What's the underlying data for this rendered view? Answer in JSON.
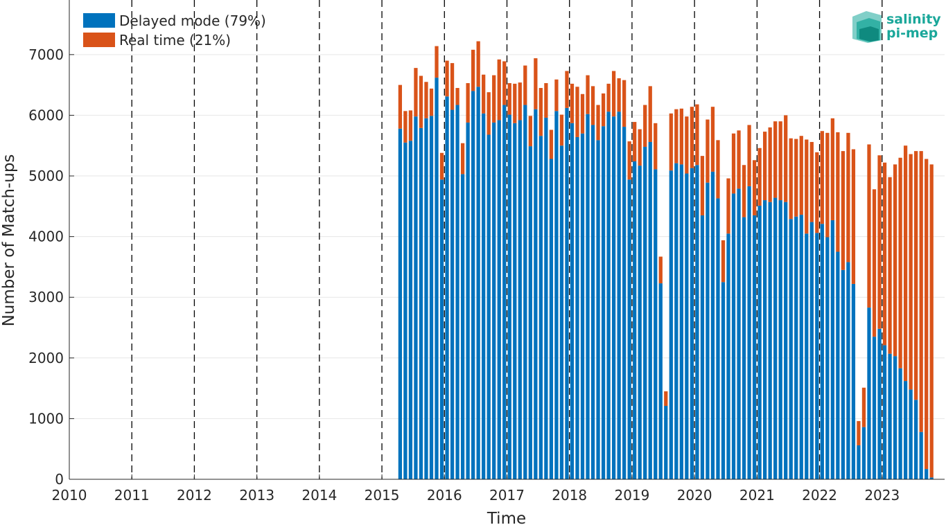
{
  "chart_data": {
    "type": "bar",
    "stacked": true,
    "xlabel": "Time",
    "ylabel": "Number of Match-ups",
    "ylim": [
      0,
      7900
    ],
    "xlim": [
      "2010-01",
      "2023-12"
    ],
    "grid": "horizontal",
    "legend_position": "top-left",
    "year_dividers": "dashed vertical line at each year start",
    "x_tick_labels": [
      "2010",
      "2011",
      "2012",
      "2013",
      "2014",
      "2015",
      "2016",
      "2017",
      "2018",
      "2019",
      "2020",
      "2021",
      "2022",
      "2023"
    ],
    "y_tick_labels": [
      "0",
      "1000",
      "2000",
      "3000",
      "4000",
      "5000",
      "6000",
      "7000"
    ],
    "colors": {
      "delayed": "#0072bd",
      "realtime": "#d95319",
      "axis": "#262626",
      "grid": "#e6e6e6"
    },
    "series": [
      {
        "name": "Delayed mode (79%)",
        "values": [
          5780,
          5550,
          5580,
          5980,
          5790,
          5950,
          5990,
          6620,
          4940,
          6310,
          6090,
          6170,
          5030,
          5880,
          6400,
          6470,
          6030,
          5680,
          5880,
          5920,
          6170,
          6010,
          5870,
          5920,
          6170,
          5490,
          6100,
          5660,
          5960,
          5280,
          6070,
          5500,
          6120,
          5870,
          5640,
          5700,
          6020,
          5840,
          5590,
          5820,
          6060,
          5980,
          6060,
          5810,
          4940,
          5240,
          5170,
          5480,
          5560,
          5110,
          3230,
          1210,
          5090,
          5210,
          5190,
          5040,
          5130,
          5180,
          4350,
          4890,
          5070,
          4630,
          3250,
          4050,
          4710,
          4790,
          4320,
          4830,
          4350,
          4510,
          4600,
          4570,
          4640,
          4600,
          4570,
          4290,
          4330,
          4360,
          4050,
          4240,
          4060,
          4210,
          3990,
          4270,
          3750,
          3450,
          3580,
          3220,
          560,
          860,
          2830,
          2350,
          2480,
          2210,
          2070,
          2030,
          1830,
          1620,
          1480,
          1310,
          780,
          170,
          30
        ],
        "color": "#0072bd"
      },
      {
        "name": "Real time (21%)",
        "values": [
          720,
          520,
          500,
          800,
          860,
          600,
          450,
          520,
          440,
          590,
          770,
          280,
          510,
          650,
          680,
          750,
          640,
          700,
          780,
          1000,
          720,
          520,
          650,
          620,
          650,
          500,
          840,
          790,
          570,
          480,
          520,
          510,
          610,
          650,
          830,
          650,
          640,
          640,
          580,
          540,
          460,
          750,
          550,
          770,
          630,
          650,
          600,
          690,
          920,
          760,
          440,
          240,
          940,
          890,
          920,
          940,
          1010,
          1000,
          980,
          1040,
          1070,
          960,
          690,
          910,
          990,
          960,
          860,
          1010,
          910,
          950,
          1130,
          1230,
          1260,
          1300,
          1430,
          1330,
          1280,
          1300,
          1550,
          1320,
          1330,
          1530,
          1720,
          1680,
          1970,
          1960,
          2130,
          2220,
          400,
          650,
          2690,
          2430,
          2860,
          3010,
          2910,
          3160,
          3470,
          3880,
          3880,
          4100,
          4630,
          5110,
          5160
        ],
        "color": "#d95319"
      }
    ],
    "x_months": [
      "2015-04",
      "2015-05",
      "2015-06",
      "2015-07",
      "2015-08",
      "2015-09",
      "2015-10",
      "2015-11",
      "2015-12",
      "2016-01",
      "2016-02",
      "2016-03",
      "2016-04",
      "2016-05",
      "2016-06",
      "2016-07",
      "2016-08",
      "2016-09",
      "2016-10",
      "2016-11",
      "2016-12",
      "2017-01",
      "2017-02",
      "2017-03",
      "2017-04",
      "2017-05",
      "2017-06",
      "2017-07",
      "2017-08",
      "2017-09",
      "2017-10",
      "2017-11",
      "2017-12",
      "2018-01",
      "2018-02",
      "2018-03",
      "2018-04",
      "2018-05",
      "2018-06",
      "2018-07",
      "2018-08",
      "2018-09",
      "2018-10",
      "2018-11",
      "2018-12",
      "2019-01",
      "2019-02",
      "2019-03",
      "2019-04",
      "2019-05",
      "2019-06",
      "2019-07",
      "2019-08",
      "2019-09",
      "2019-10",
      "2019-11",
      "2019-12",
      "2020-01",
      "2020-02",
      "2020-03",
      "2020-04",
      "2020-05",
      "2020-06",
      "2020-07",
      "2020-08",
      "2020-09",
      "2020-10",
      "2020-11",
      "2020-12",
      "2021-01",
      "2021-02",
      "2021-03",
      "2021-04",
      "2021-05",
      "2021-06",
      "2021-07",
      "2021-08",
      "2021-09",
      "2021-10",
      "2021-11",
      "2021-12",
      "2022-01",
      "2022-02",
      "2022-03",
      "2022-04",
      "2022-05",
      "2022-06",
      "2022-07",
      "2022-08",
      "2022-09",
      "2022-10",
      "2022-11",
      "2022-12",
      "2023-01",
      "2023-02",
      "2023-03",
      "2023-04",
      "2023-05",
      "2023-06",
      "2023-07",
      "2023-08",
      "2023-09",
      "2023-10"
    ]
  },
  "logo": {
    "line1": "salinity",
    "line2": "pi-mep",
    "icon": "salinity-pimep-logo-icon",
    "color": "#1aa79a"
  }
}
